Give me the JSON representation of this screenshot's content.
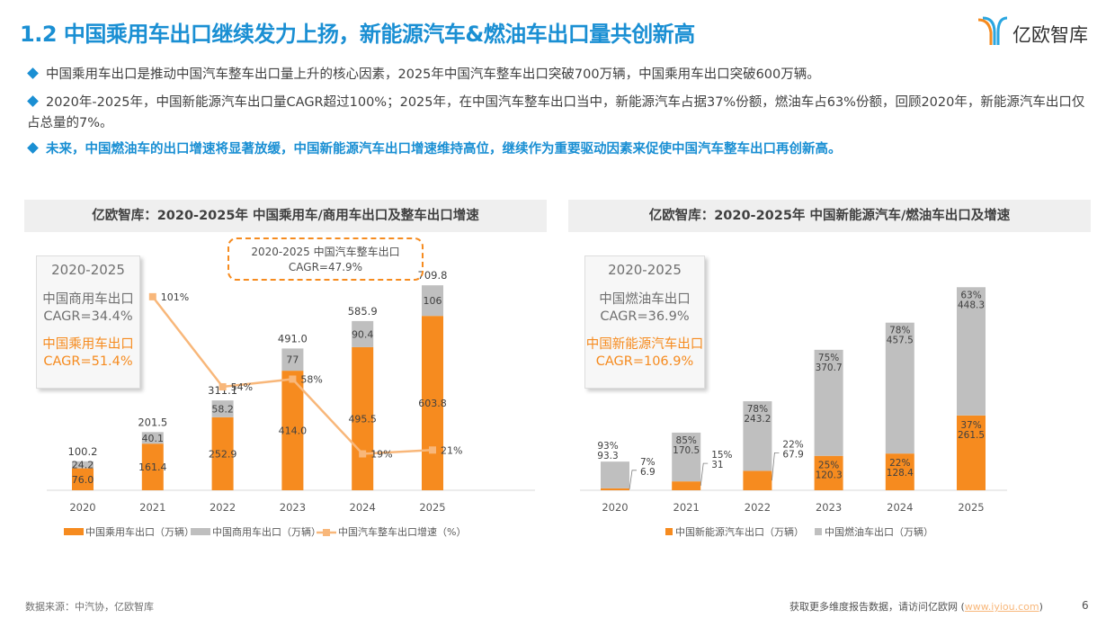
{
  "header": {
    "title": "1.2 中国乘用车出口继续发力上扬，新能源汽车&燃油车出口量共创新高",
    "logo_text": "亿欧智库"
  },
  "bullets": [
    "中国乘用车出口是推动中国汽车整车出口量上升的核心因素，2025年中国汽车整车出口突破700万辆，中国乘用车出口突破600万辆。",
    "2020年-2025年，中国新能源汽车出口量CAGR超过100%；2025年，在中国汽车整车出口当中，新能源汽车占据37%份额，燃油车占63%份额，回顾2020年，新能源汽车出口仅占总量的7%。",
    "未来，中国燃油车的出口增速将显著放缓，中国新能源汽车出口增速维持高位，继续作为重要驱动因素来促使中国汽车整车出口再创新高。"
  ],
  "colors": {
    "accent": "#1a8fd3",
    "orange": "#f68b1f",
    "gray": "#bfbfbf",
    "line": "#f8b77a"
  },
  "left_panel": {
    "title": "亿欧智库：2020-2025年 中国乘用车/商用车出口及整车出口增速",
    "cagr_box": {
      "period": "2020-2025",
      "line1": "中国商用车出口",
      "line2": "CAGR=34.4%",
      "line3": "中国乘用车出口",
      "line4": "CAGR=51.4%"
    },
    "dash_box": {
      "line1": "2020-2025 中国汽车整车出口",
      "line2": "CAGR=47.9%"
    }
  },
  "right_panel": {
    "title": "亿欧智库：2020-2025年 中国新能源汽车/燃油车出口及增速",
    "cagr_box": {
      "period": "2020-2025",
      "line1": "中国燃油车出口",
      "line2": "CAGR=36.9%",
      "line3": "中国新能源汽车出口",
      "line4": "CAGR=106.9%"
    }
  },
  "chart_data": [
    {
      "type": "bar",
      "stacked": true,
      "categories": [
        "2020",
        "2021",
        "2022",
        "2023",
        "2024",
        "2025"
      ],
      "series": [
        {
          "name": "中国乘用车出口（万辆）",
          "values": [
            "76.0",
            "161.4",
            "252.9",
            "414.0",
            "495.5",
            "603.8"
          ],
          "color": "#f68b1f"
        },
        {
          "name": "中国商用车出口（万辆）",
          "values": [
            "24.2",
            "40.1",
            "58.2",
            "77",
            "90.4",
            "106"
          ],
          "color": "#bfbfbf"
        }
      ],
      "totals": [
        "100.2",
        "201.5",
        "311.1",
        "491.0",
        "585.9",
        "709.8"
      ],
      "line_series": {
        "name": "中国汽车整车出口增速（%）",
        "x": [
          "2021",
          "2022",
          "2023",
          "2024",
          "2025"
        ],
        "values": [
          101,
          54,
          58,
          19,
          21
        ],
        "labels": [
          "101%",
          "54%",
          "58%",
          "19%",
          "21%"
        ],
        "color": "#f8b77a"
      },
      "legend": "bottom",
      "grid": false
    },
    {
      "type": "bar",
      "stacked": true,
      "categories": [
        "2020",
        "2021",
        "2022",
        "2023",
        "2024",
        "2025"
      ],
      "series": [
        {
          "name": "中国新能源汽车出口（万辆）",
          "values": [
            "6.9",
            "31",
            "67.9",
            "120.3",
            "128.4",
            "261.5"
          ],
          "shares": [
            "7%",
            "15%",
            "22%",
            "25%",
            "22%",
            "37%"
          ],
          "color": "#f68b1f"
        },
        {
          "name": "中国燃油车出口（万辆）",
          "values": [
            "93.3",
            "170.5",
            "243.2",
            "370.7",
            "457.5",
            "448.3"
          ],
          "shares": [
            "93%",
            "85%",
            "78%",
            "75%",
            "78%",
            "63%"
          ],
          "color": "#bfbfbf"
        }
      ],
      "legend": "bottom",
      "grid": false
    }
  ],
  "footer": {
    "source": "数据来源：中汽协，亿欧智库",
    "cta": "获取更多维度报告数据，请访问亿欧网 (",
    "link": "www.iyiou.com",
    "cta_end": ")",
    "page": "6"
  }
}
